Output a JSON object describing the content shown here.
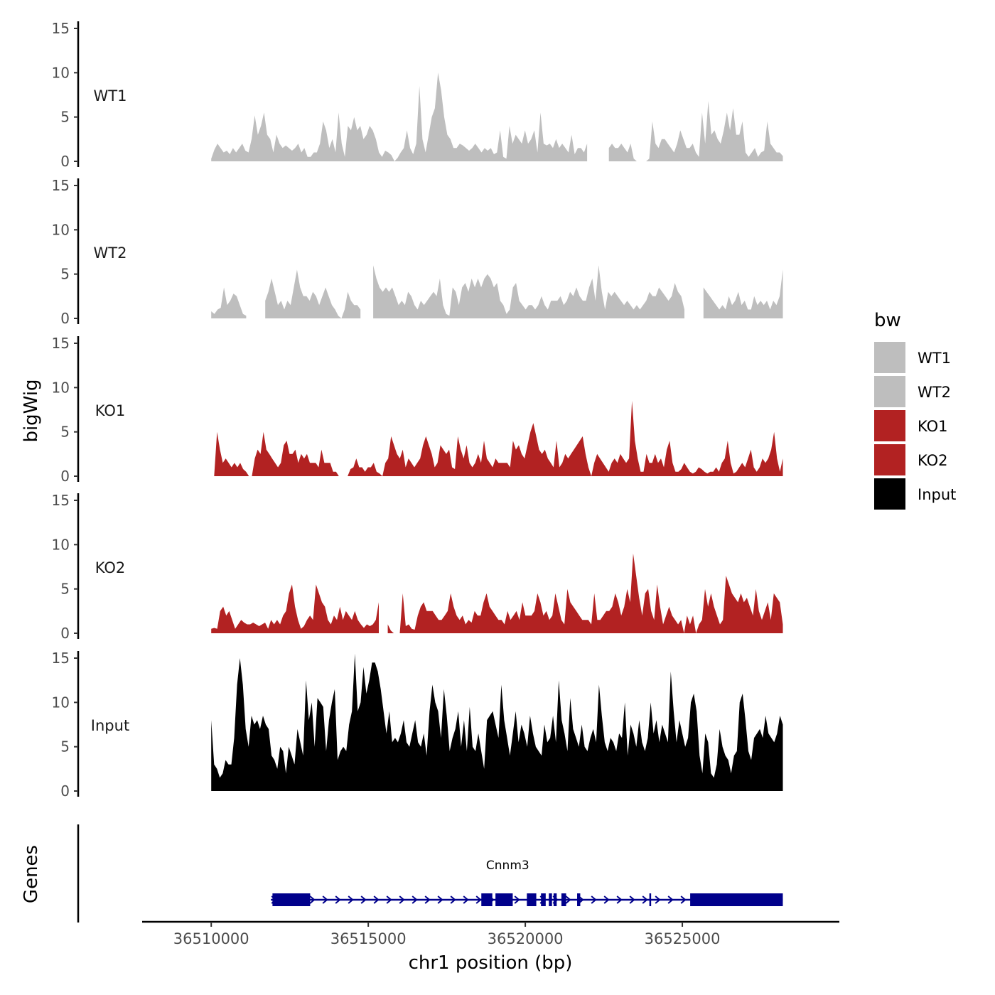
{
  "chart_data": {
    "type": "area",
    "ylabel": "bigWig",
    "genes_label": "Genes",
    "xlabel": "chr1 position (bp)",
    "xlim": [
      36507800,
      36530000
    ],
    "ylim": [
      0,
      15
    ],
    "y_ticks": [
      "0",
      "5",
      "10",
      "15"
    ],
    "x_ticks": [
      {
        "value": 36510000,
        "label": "36510000"
      },
      {
        "value": 36515000,
        "label": "36515000"
      },
      {
        "value": 36520000,
        "label": "36520000"
      },
      {
        "value": 36525000,
        "label": "36525000"
      }
    ],
    "x_start": 36510000,
    "x_end": 36528200,
    "legend": {
      "title": "bw",
      "position": "right",
      "entries": [
        {
          "label": "WT1",
          "color": "#BEBEBE"
        },
        {
          "label": "WT2",
          "color": "#BEBEBE"
        },
        {
          "label": "KO1",
          "color": "#B22222"
        },
        {
          "label": "KO2",
          "color": "#B22222"
        },
        {
          "label": "Input",
          "color": "#000000"
        }
      ]
    },
    "tracks": [
      {
        "name": "WT1",
        "color": "#BEBEBE",
        "values": [
          0.3,
          1.3,
          2.0,
          1.5,
          1.0,
          1.2,
          0.8,
          1.5,
          1.0,
          1.5,
          2.0,
          1.2,
          1.0,
          2.5,
          5.2,
          3.0,
          4.0,
          5.5,
          3.0,
          2.5,
          1.0,
          3.0,
          2.0,
          1.5,
          1.8,
          1.5,
          1.2,
          1.5,
          2.0,
          1.0,
          1.5,
          0.5,
          0.5,
          1.0,
          1.0,
          2.0,
          4.5,
          3.5,
          1.5,
          2.5,
          1.0,
          5.5,
          2.0,
          0.5,
          4.0,
          3.5,
          5.0,
          3.5,
          4.0,
          2.5,
          3.0,
          4.0,
          3.5,
          2.5,
          1.0,
          0.5,
          1.2,
          1.0,
          0.7,
          0.0,
          0.4,
          1.0,
          1.5,
          3.5,
          1.5,
          0.8,
          2.0,
          8.5,
          2.5,
          1.0,
          3.0,
          5.0,
          6.0,
          10.0,
          8.0,
          5.0,
          3.0,
          2.5,
          1.5,
          1.5,
          2.0,
          1.8,
          1.5,
          1.2,
          1.5,
          2.0,
          1.5,
          1.0,
          1.5,
          1.2,
          1.5,
          0.8,
          1.0,
          3.5,
          0.5,
          0.3,
          4.0,
          2.0,
          3.0,
          2.5,
          2.0,
          3.5,
          2.0,
          2.5,
          3.5,
          1.0,
          5.5,
          2.0,
          1.8,
          2.0,
          1.5,
          2.5,
          1.5,
          2.0,
          1.5,
          1.0,
          3.0,
          0.8,
          1.5,
          1.5,
          1.0,
          2.0,
          1.5,
          1.5,
          4.0,
          2.5,
          1.5,
          2.5,
          1.5,
          2.0,
          1.5,
          1.5,
          2.0,
          1.5,
          1.0,
          2.0,
          0.3,
          0.0,
          0.0,
          0.0,
          0.0,
          0.3,
          4.5,
          2.0,
          1.5,
          2.5,
          2.5,
          2.0,
          1.5,
          1.0,
          2.0,
          3.5,
          2.5,
          1.5,
          1.5,
          2.0,
          1.0,
          0.5,
          5.5,
          2.0,
          6.8,
          3.0,
          3.5,
          2.5,
          2.0,
          3.5,
          5.5,
          3.5,
          6.0,
          3.0,
          3.0,
          4.5,
          1.0,
          0.5,
          1.0,
          1.5,
          0.5,
          1.0,
          1.2,
          4.5,
          2.0,
          1.5,
          1.0,
          1.0,
          0.6
        ],
        "gaps": [
          [
            36522000,
            36522650
          ]
        ]
      },
      {
        "name": "WT2",
        "color": "#BEBEBE",
        "values": [
          0.8,
          0.5,
          1.0,
          1.2,
          3.5,
          1.5,
          2.0,
          2.8,
          2.5,
          1.5,
          0.5,
          0.3,
          0.8,
          0.5,
          0.0,
          0.5,
          1.5,
          2.0,
          3.0,
          4.5,
          3.0,
          1.5,
          2.0,
          1.0,
          2.0,
          1.5,
          3.5,
          5.5,
          3.5,
          2.5,
          2.5,
          2.0,
          3.0,
          2.5,
          1.5,
          2.5,
          3.5,
          2.5,
          1.5,
          1.0,
          0.3,
          0.0,
          1.0,
          3.0,
          2.0,
          1.5,
          1.5,
          1.0,
          1.5,
          1.0,
          2.5,
          6.0,
          4.5,
          3.5,
          3.0,
          3.5,
          3.0,
          3.5,
          2.5,
          1.5,
          2.0,
          1.5,
          3.0,
          2.5,
          1.5,
          1.0,
          2.0,
          1.5,
          2.0,
          2.5,
          3.0,
          2.5,
          4.5,
          1.5,
          0.5,
          0.3,
          3.5,
          3.0,
          1.5,
          3.5,
          4.0,
          3.0,
          4.5,
          3.5,
          4.5,
          3.5,
          4.5,
          5.0,
          4.5,
          3.5,
          4.0,
          2.0,
          1.5,
          0.5,
          1.0,
          3.5,
          4.0,
          2.0,
          1.5,
          1.0,
          1.5,
          1.5,
          1.0,
          1.5,
          2.5,
          1.5,
          1.0,
          2.0,
          2.0,
          2.0,
          2.5,
          1.5,
          2.0,
          3.0,
          2.5,
          3.5,
          2.5,
          2.0,
          2.0,
          3.5,
          4.5,
          2.0,
          6.0,
          3.0,
          1.0,
          3.0,
          2.5,
          3.0,
          2.5,
          2.0,
          1.5,
          2.0,
          1.5,
          1.0,
          1.5,
          1.0,
          1.5,
          2.0,
          3.0,
          2.5,
          2.5,
          3.5,
          3.0,
          2.5,
          2.0,
          2.5,
          4.0,
          3.0,
          2.5,
          1.0,
          0.5,
          0.3,
          1.5,
          2.0,
          4.0,
          3.5,
          3.0,
          2.5,
          2.0,
          1.5,
          1.0,
          1.5,
          1.0,
          2.5,
          1.5,
          2.0,
          3.0,
          1.5,
          2.0,
          1.0,
          1.0,
          2.5,
          1.5,
          2.0,
          1.5,
          2.0,
          1.0,
          2.0,
          1.5,
          2.5,
          5.5
        ],
        "gaps": [
          [
            36511150,
            36511650
          ],
          [
            36514850,
            36515100
          ],
          [
            36525150,
            36525650
          ]
        ]
      },
      {
        "name": "KO1",
        "color": "#B22222",
        "values": [
          0.0,
          0.0,
          5.0,
          3.0,
          1.5,
          2.0,
          1.5,
          1.0,
          1.5,
          1.0,
          1.5,
          0.8,
          0.5,
          0.0,
          0.0,
          2.0,
          3.0,
          2.5,
          5.0,
          3.0,
          2.5,
          2.0,
          1.5,
          1.0,
          1.5,
          3.5,
          4.0,
          2.5,
          2.5,
          3.0,
          1.5,
          2.5,
          2.0,
          2.5,
          1.5,
          1.5,
          1.5,
          1.0,
          3.0,
          1.5,
          1.5,
          1.5,
          0.5,
          0.5,
          0.0,
          0.0,
          0.0,
          0.0,
          0.8,
          1.0,
          2.0,
          1.0,
          1.0,
          0.5,
          1.0,
          1.0,
          1.5,
          0.5,
          0.3,
          0.0,
          1.5,
          2.0,
          4.5,
          3.5,
          2.5,
          2.0,
          3.0,
          1.0,
          2.0,
          1.5,
          1.0,
          1.5,
          2.0,
          3.5,
          4.5,
          3.5,
          2.5,
          1.0,
          1.5,
          3.5,
          3.0,
          2.5,
          3.0,
          1.0,
          0.8,
          4.5,
          3.0,
          2.0,
          3.5,
          1.5,
          1.0,
          1.5,
          2.5,
          1.5,
          4.0,
          2.0,
          1.5,
          1.0,
          2.0,
          1.5,
          1.5,
          1.5,
          1.5,
          1.0,
          4.0,
          3.0,
          3.5,
          2.5,
          2.0,
          3.5,
          5.0,
          6.0,
          4.5,
          3.0,
          2.5,
          3.0,
          2.0,
          1.5,
          1.0,
          4.0,
          1.0,
          1.5,
          2.5,
          2.0,
          2.5,
          3.0,
          3.5,
          4.0,
          4.5,
          2.5,
          1.0,
          0.0,
          1.5,
          2.5,
          2.0,
          1.5,
          1.0,
          0.5,
          1.5,
          2.0,
          1.5,
          2.5,
          2.0,
          1.5,
          2.0,
          8.5,
          4.0,
          2.0,
          0.5,
          0.5,
          2.5,
          1.5,
          1.5,
          2.5,
          1.5,
          2.0,
          1.0,
          3.0,
          4.0,
          1.5,
          0.5,
          0.5,
          0.8,
          1.5,
          1.0,
          0.5,
          0.3,
          0.5,
          1.0,
          0.8,
          0.5,
          0.3,
          0.5,
          0.5,
          1.0,
          0.5,
          1.5,
          2.0,
          4.0,
          1.5,
          0.3,
          0.5,
          1.0,
          1.5,
          1.0,
          2.0,
          3.0,
          1.0,
          0.5,
          1.0,
          2.0,
          1.5,
          2.0,
          3.0,
          5.0,
          2.0,
          0.5,
          2.0
        ],
        "gaps": [
          [
            36519200,
            36519200
          ]
        ]
      },
      {
        "name": "KO2",
        "color": "#B22222",
        "values": [
          0.5,
          0.6,
          0.5,
          2.5,
          3.0,
          2.0,
          2.5,
          1.5,
          0.5,
          1.0,
          1.5,
          1.2,
          1.0,
          1.0,
          1.2,
          1.0,
          0.8,
          1.0,
          1.2,
          0.5,
          1.5,
          1.0,
          1.5,
          1.0,
          2.0,
          2.5,
          4.5,
          5.5,
          3.0,
          1.5,
          0.5,
          0.8,
          1.5,
          2.0,
          1.5,
          5.5,
          4.5,
          3.5,
          3.0,
          1.5,
          1.0,
          2.0,
          1.5,
          3.0,
          1.5,
          2.5,
          2.0,
          1.5,
          2.5,
          1.5,
          1.0,
          0.6,
          1.0,
          0.8,
          1.0,
          1.5,
          3.5,
          6.5,
          4.0,
          1.0,
          0.3,
          0.0,
          0.0,
          0.0,
          4.5,
          0.8,
          1.0,
          0.5,
          0.4,
          2.0,
          3.0,
          3.5,
          2.5,
          2.5,
          2.5,
          2.0,
          1.5,
          1.5,
          2.0,
          2.5,
          4.5,
          3.0,
          2.0,
          1.5,
          2.0,
          1.0,
          1.5,
          1.2,
          2.5,
          2.0,
          2.0,
          3.5,
          4.5,
          3.0,
          2.5,
          2.0,
          1.5,
          1.5,
          1.0,
          2.5,
          1.5,
          2.0,
          2.5,
          1.5,
          3.5,
          2.0,
          2.0,
          2.0,
          2.5,
          4.5,
          3.5,
          2.0,
          2.5,
          1.5,
          2.0,
          4.5,
          3.0,
          1.5,
          1.0,
          5.0,
          3.5,
          3.0,
          2.5,
          2.0,
          1.5,
          1.5,
          1.5,
          1.0,
          4.5,
          1.5,
          1.5,
          2.0,
          2.5,
          2.5,
          3.0,
          4.5,
          3.5,
          2.0,
          3.0,
          5.0,
          3.5,
          9.0,
          6.5,
          4.0,
          2.0,
          4.5,
          5.0,
          2.5,
          1.5,
          5.5,
          3.0,
          1.0,
          2.0,
          3.0,
          2.0,
          1.5,
          1.0,
          1.5,
          0.0,
          2.0,
          1.0,
          2.0,
          0.0,
          1.0,
          1.5,
          5.0,
          3.0,
          4.5,
          3.0,
          2.0,
          1.0,
          1.5,
          6.5,
          5.5,
          4.5,
          4.0,
          3.5,
          4.5,
          3.5,
          4.0,
          3.0,
          2.0,
          5.0,
          2.5,
          1.5,
          2.5,
          3.5,
          1.5,
          4.5,
          4.0,
          3.5,
          1.0
        ],
        "gaps": [
          [
            36515400,
            36515550
          ]
        ]
      },
      {
        "name": "Input",
        "color": "#000000",
        "values": [
          8.0,
          3.0,
          2.5,
          1.5,
          2.0,
          3.5,
          3.0,
          3.0,
          6.0,
          12.0,
          15.0,
          12.0,
          7.0,
          5.0,
          8.5,
          7.5,
          8.0,
          7.0,
          8.5,
          7.5,
          7.0,
          4.0,
          3.5,
          2.5,
          5.0,
          4.5,
          2.0,
          5.0,
          4.0,
          3.0,
          7.0,
          5.5,
          4.0,
          12.5,
          8.0,
          10.0,
          5.0,
          10.5,
          10.0,
          9.5,
          4.5,
          8.0,
          10.0,
          11.5,
          3.5,
          4.5,
          5.0,
          4.5,
          7.5,
          9.0,
          15.5,
          9.0,
          10.0,
          14.0,
          11.0,
          12.5,
          14.5,
          14.5,
          13.5,
          11.5,
          9.0,
          6.5,
          9.0,
          5.5,
          6.0,
          5.5,
          6.5,
          8.0,
          5.5,
          5.0,
          6.5,
          8.0,
          5.5,
          5.0,
          6.5,
          4.0,
          9.0,
          12.0,
          10.0,
          9.0,
          6.0,
          11.5,
          8.5,
          4.5,
          6.0,
          7.0,
          9.0,
          5.0,
          8.0,
          4.5,
          9.5,
          5.0,
          4.5,
          6.5,
          4.5,
          2.5,
          8.0,
          8.5,
          9.0,
          7.5,
          6.0,
          12.0,
          8.0,
          6.0,
          4.0,
          6.5,
          9.0,
          5.5,
          7.5,
          6.5,
          5.0,
          8.5,
          6.5,
          5.0,
          4.5,
          4.0,
          7.5,
          5.5,
          6.0,
          8.5,
          5.5,
          12.5,
          8.0,
          6.5,
          4.5,
          10.5,
          7.0,
          6.0,
          5.0,
          7.5,
          5.0,
          4.5,
          6.0,
          7.0,
          5.5,
          12.0,
          8.5,
          5.5,
          4.5,
          6.0,
          5.5,
          4.5,
          6.5,
          6.0,
          10.0,
          4.0,
          7.5,
          6.5,
          5.0,
          8.0,
          5.5,
          4.5,
          6.0,
          10.0,
          6.5,
          8.0,
          5.5,
          7.5,
          6.5,
          5.5,
          13.5,
          9.0,
          5.5,
          8.0,
          6.5,
          5.0,
          6.0,
          10.0,
          11.0,
          9.0,
          4.0,
          2.0,
          6.5,
          5.5,
          2.0,
          1.5,
          3.0,
          7.0,
          5.0,
          4.0,
          3.5,
          2.0,
          4.0,
          4.5,
          10.0,
          11.0,
          8.0,
          4.5,
          3.5,
          6.0,
          6.5,
          7.0,
          6.0,
          8.5,
          6.5,
          6.0,
          5.5,
          6.5,
          8.5,
          7.5
        ],
        "gaps": []
      }
    ],
    "gene": {
      "name": "Cnnm3",
      "color": "#00008B",
      "start": 36511900,
      "end": 36528200,
      "exons": [
        [
          36511950,
          36513150
        ],
        [
          36518600,
          36518950
        ],
        [
          36519050,
          36519600
        ],
        [
          36520050,
          36520350
        ],
        [
          36520500,
          36520650
        ],
        [
          36520750,
          36520850
        ],
        [
          36520900,
          36521000
        ],
        [
          36521150,
          36521300
        ],
        [
          36521650,
          36521750
        ],
        [
          36523950,
          36524000
        ],
        [
          36525250,
          36528200
        ]
      ]
    }
  }
}
